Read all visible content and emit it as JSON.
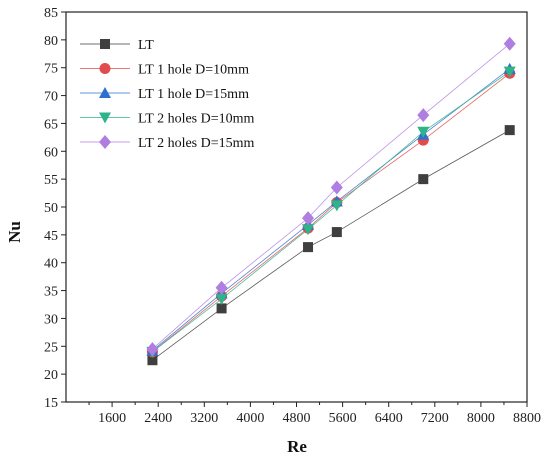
{
  "chart_data": {
    "type": "line",
    "xlabel": "Re",
    "ylabel": "Nu",
    "xlim": [
      800,
      8800
    ],
    "ylim": [
      15,
      85
    ],
    "xticks": [
      1600,
      2400,
      3200,
      4000,
      4800,
      5600,
      6400,
      7200,
      8000,
      8800
    ],
    "yticks": [
      15,
      20,
      25,
      30,
      35,
      40,
      45,
      50,
      55,
      60,
      65,
      70,
      75,
      80,
      85
    ],
    "grid": false,
    "legend_position": "top-left",
    "x": [
      2300,
      3500,
      5000,
      5500,
      7000,
      8500
    ],
    "series": [
      {
        "name": "LT",
        "color": "#3f3f3f",
        "marker": "square",
        "values": [
          22.5,
          31.8,
          42.8,
          45.5,
          55.0,
          63.8
        ]
      },
      {
        "name": "LT 1 hole D=10mm",
        "color": "#e14b4b",
        "marker": "circle",
        "values": [
          24.0,
          34.0,
          46.2,
          50.8,
          62.0,
          74.0
        ]
      },
      {
        "name": "LT 1 hole D=15mm",
        "color": "#2f6fcd",
        "marker": "triangle-up",
        "values": [
          24.2,
          34.5,
          46.8,
          51.0,
          63.0,
          74.8
        ]
      },
      {
        "name": "LT 2 holes D=10mm",
        "color": "#2fb38a",
        "marker": "triangle-down",
        "values": [
          24.0,
          33.5,
          46.0,
          50.3,
          63.5,
          74.3
        ]
      },
      {
        "name": "LT 2 holes D=15mm",
        "color": "#b07ee0",
        "marker": "diamond",
        "values": [
          24.5,
          35.5,
          48.0,
          53.5,
          66.5,
          79.3
        ]
      }
    ]
  }
}
